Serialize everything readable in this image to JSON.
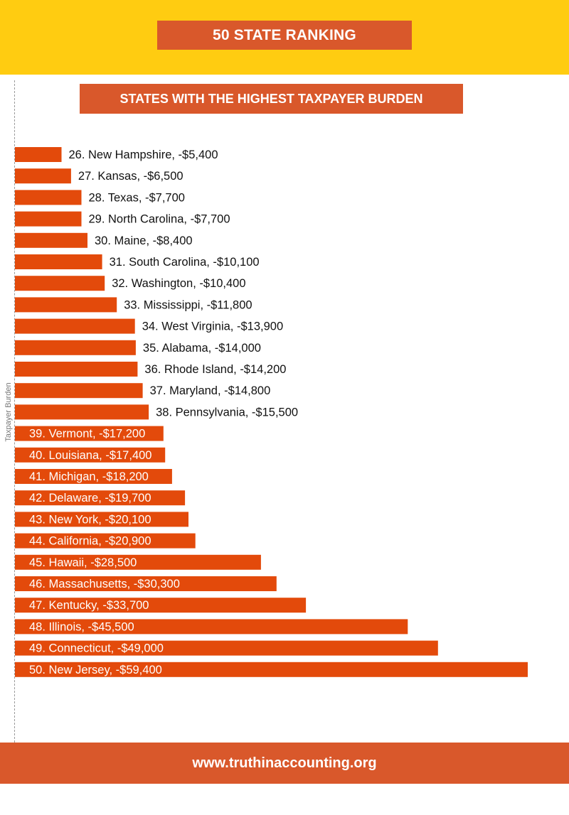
{
  "header": {
    "title": "50 STATE RANKING",
    "subtitle": "STATES WITH THE HIGHEST TAXPAYER BURDEN"
  },
  "footer": {
    "url": "www.truthinaccounting.org"
  },
  "colors": {
    "top_band": "#FFCC11",
    "box": "#D9582B",
    "bar": "#E34A0B",
    "label_dark": "#111111",
    "label_light": "#ffffff"
  },
  "chart_data": {
    "type": "bar",
    "orientation": "horizontal",
    "ylabel": "Taxpayer Burden",
    "grid": false,
    "categories": [
      "New Hampshire",
      "Kansas",
      "Texas",
      "North Carolina",
      "Maine",
      "South Carolina",
      "Washington",
      "Mississippi",
      "West Virginia",
      "Alabama",
      "Rhode Island",
      "Maryland",
      "Pennsylvania",
      "Vermont",
      "Louisiana",
      "Michigan",
      "Delaware",
      "New York",
      "California",
      "Hawaii",
      "Massachusetts",
      "Kentucky",
      "Illinois",
      "Connecticut",
      "New Jersey"
    ],
    "values": [
      -5400,
      -6500,
      -7700,
      -7700,
      -8400,
      -10100,
      -10400,
      -11800,
      -13900,
      -14000,
      -14200,
      -14800,
      -15500,
      -17200,
      -17400,
      -18200,
      -19700,
      -20100,
      -20900,
      -28500,
      -30300,
      -33700,
      -45500,
      -49000,
      -59400
    ],
    "labels": [
      "26. New Hampshire, -$5,400",
      "27. Kansas, -$6,500",
      "28. Texas, -$7,700",
      "29. North Carolina, -$7,700",
      "30. Maine, -$8,400",
      "31. South Carolina, -$10,100",
      "32. Washington, -$10,400",
      "33. Mississippi, -$11,800",
      "34. West Virginia, -$13,900",
      "35. Alabama, -$14,000",
      "36. Rhode Island, -$14,200",
      "37. Maryland, -$14,800",
      "38. Pennsylvania, -$15,500",
      "39. Vermont, -$17,200",
      "40. Louisiana, -$17,400",
      "41. Michigan, -$18,200",
      "42. Delaware, -$19,700",
      "43. New York, -$20,100",
      "44. California, -$20,900",
      "45. Hawaii, -$28,500",
      "46. Massachusetts, -$30,300",
      "47. Kentucky, -$33,700",
      "48. Illinois, -$45,500",
      "49. Connecticut, -$49,000",
      "50. New Jersey, -$59,400"
    ],
    "labels_inside_from": 13
  }
}
